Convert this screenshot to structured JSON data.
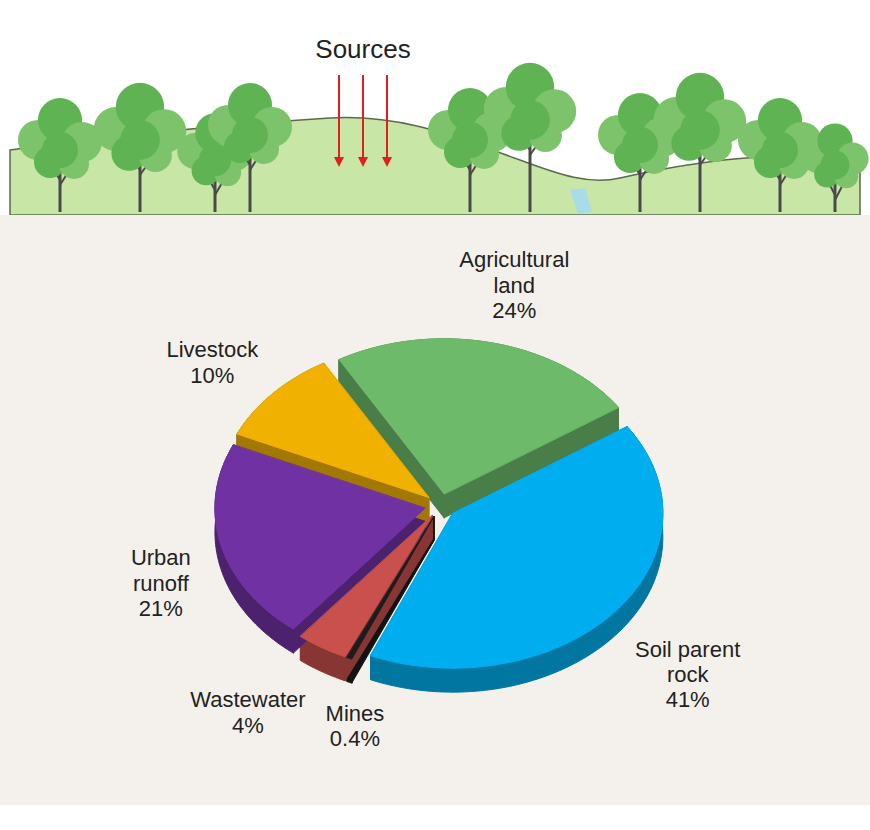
{
  "chart_data": {
    "type": "pie",
    "title": "Sources",
    "categories": [
      "Agricultural land",
      "Soil parent rock",
      "Mines",
      "Wastewater",
      "Urban runoff",
      "Livestock"
    ],
    "values": [
      24,
      41,
      0.4,
      4,
      21,
      10
    ],
    "value_labels": [
      "24%",
      "41%",
      "0.4%",
      "4%",
      "21%",
      "10%"
    ],
    "colors": [
      "#6dbb6a",
      "#00aeef",
      "#1c1c1c",
      "#c9504c",
      "#7031a3",
      "#f0b100"
    ],
    "data_labels": true
  }
}
